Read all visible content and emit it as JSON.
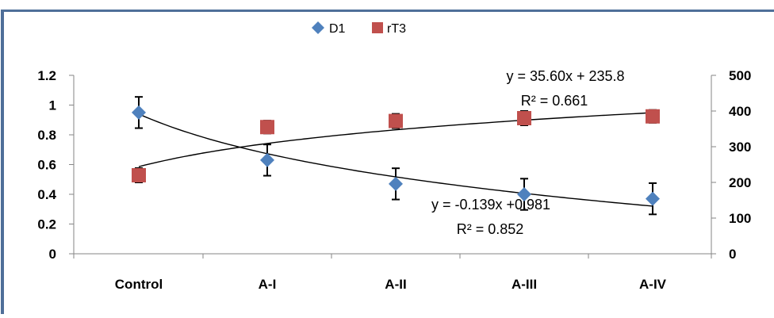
{
  "chart_data": {
    "type": "scatter",
    "categories": [
      "Control",
      "A-I",
      "A-II",
      "A-III",
      "A-IV"
    ],
    "series": [
      {
        "name": "D1",
        "axis": "left",
        "marker": "diamond",
        "color": "#4f81bd",
        "values": [
          0.95,
          0.63,
          0.47,
          0.4,
          0.37
        ],
        "error": [
          0.105,
          0.105,
          0.105,
          0.105,
          0.105
        ]
      },
      {
        "name": "rT3",
        "axis": "right",
        "marker": "square",
        "color": "#c0504d",
        "values": [
          220,
          355,
          372,
          380,
          385
        ],
        "error": [
          20,
          18,
          20,
          20,
          18
        ]
      }
    ],
    "y_left": {
      "min": 0,
      "max": 1.2,
      "ticks": [
        "0",
        "0.2",
        "0.4",
        "0.6",
        "0.8",
        "1",
        "1.2"
      ]
    },
    "y_right": {
      "min": 0,
      "max": 500,
      "ticks": [
        "0",
        "100",
        "200",
        "300",
        "400",
        "500"
      ]
    },
    "legend": {
      "placement": "top-center"
    },
    "grid": false,
    "trendlines": [
      {
        "series": "rT3",
        "equation": "y = 35.60x + 235.8",
        "r2": "R² = 0.661"
      },
      {
        "series": "D1",
        "equation": "y = -0.139x +0.981",
        "r2": "R² = 0.852"
      }
    ]
  },
  "colors": {
    "frame": "#4f6f99",
    "text": "#000000",
    "trendline": "#000000"
  }
}
